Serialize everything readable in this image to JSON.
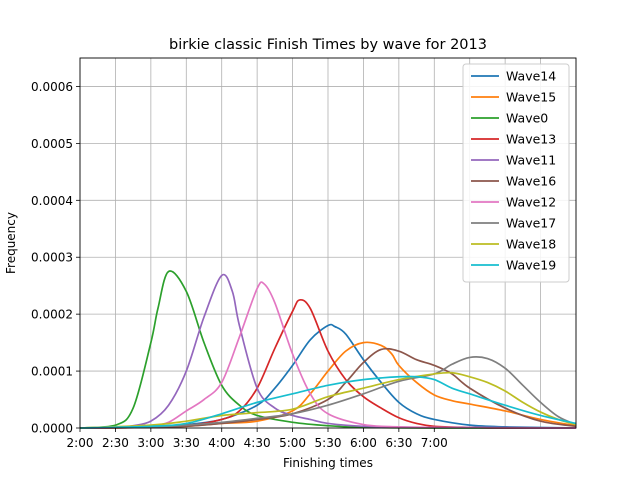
{
  "chart_data": {
    "type": "line",
    "title": "birkie classic Finish Times by wave for 2013",
    "xlabel": "Finishing times",
    "ylabel": "Frequency",
    "xlim": [
      2.0,
      9.0
    ],
    "ylim": [
      0,
      0.00065
    ],
    "x_ticks": [
      {
        "x": 2.0,
        "label": "2:00"
      },
      {
        "x": 2.5,
        "label": "2:30"
      },
      {
        "x": 3.0,
        "label": "3:00"
      },
      {
        "x": 3.5,
        "label": "3:30"
      },
      {
        "x": 4.0,
        "label": "4:00"
      },
      {
        "x": 4.5,
        "label": "4:30"
      },
      {
        "x": 5.0,
        "label": "5:00"
      },
      {
        "x": 5.5,
        "label": "5:30"
      },
      {
        "x": 6.0,
        "label": "6:00"
      },
      {
        "x": 6.5,
        "label": "6:30"
      },
      {
        "x": 7.0,
        "label": "7:00"
      }
    ],
    "x_grid_only": [
      7.5,
      8.0,
      8.5
    ],
    "y_ticks": [
      0,
      0.0001,
      0.0002,
      0.0003,
      0.0004,
      0.0005,
      0.0006
    ],
    "y_tick_labels": [
      "0.0000",
      "0.0001",
      "0.0002",
      "0.0003",
      "0.0004",
      "0.0005",
      "0.0006"
    ],
    "grid": true,
    "legend_position": "top-right",
    "series": [
      {
        "name": "Wave14",
        "color": "#1f77b4",
        "x": [
          2.0,
          3.0,
          3.5,
          4.0,
          4.5,
          4.75,
          5.0,
          5.25,
          5.5,
          5.6,
          5.75,
          6.0,
          6.25,
          6.5,
          6.75,
          7.0,
          7.5,
          8.0,
          9.0
        ],
        "y": [
          0,
          2e-06,
          6e-06,
          1.5e-05,
          4e-05,
          7e-05,
          0.00011,
          0.000155,
          0.00018,
          0.000178,
          0.000165,
          0.00012,
          8e-05,
          4.5e-05,
          2.5e-05,
          1.5e-05,
          5e-06,
          2e-06,
          0
        ]
      },
      {
        "name": "Wave15",
        "color": "#ff7f0e",
        "x": [
          2.0,
          3.0,
          3.5,
          4.0,
          4.5,
          5.0,
          5.25,
          5.5,
          5.75,
          6.0,
          6.25,
          6.4,
          6.5,
          6.75,
          7.0,
          7.25,
          7.5,
          8.0,
          8.5,
          9.0
        ],
        "y": [
          0,
          1e-06,
          3e-06,
          8e-06,
          1.2e-05,
          3e-05,
          6e-05,
          0.0001,
          0.000135,
          0.00015,
          0.000145,
          0.00013,
          0.00011,
          8e-05,
          5.8e-05,
          4.8e-05,
          4.2e-05,
          3e-05,
          1.5e-05,
          4e-06
        ]
      },
      {
        "name": "Wave0",
        "color": "#2ca02c",
        "x": [
          2.0,
          2.5,
          2.75,
          3.0,
          3.1,
          3.25,
          3.5,
          3.75,
          4.0,
          4.25,
          4.5,
          5.0,
          5.5,
          6.0,
          7.0,
          9.0
        ],
        "y": [
          0,
          5e-06,
          3.5e-05,
          0.00015,
          0.00021,
          0.000275,
          0.00024,
          0.00015,
          7.5e-05,
          4e-05,
          2.2e-05,
          1e-05,
          4e-06,
          1e-06,
          0,
          0
        ]
      },
      {
        "name": "Wave13",
        "color": "#d62728",
        "x": [
          2.0,
          3.0,
          3.5,
          4.0,
          4.25,
          4.5,
          4.75,
          5.0,
          5.1,
          5.25,
          5.5,
          5.75,
          6.0,
          6.25,
          6.5,
          6.75,
          7.0,
          7.5,
          8.0,
          9.0
        ],
        "y": [
          0,
          1e-06,
          4e-06,
          1.5e-05,
          3e-05,
          7e-05,
          0.00014,
          0.000205,
          0.000225,
          0.00021,
          0.000135,
          8.5e-05,
          5.5e-05,
          3.5e-05,
          1.8e-05,
          8e-06,
          3e-06,
          1e-06,
          0,
          0
        ]
      },
      {
        "name": "Wave11",
        "color": "#9467bd",
        "x": [
          2.0,
          2.5,
          2.75,
          3.0,
          3.25,
          3.5,
          3.75,
          4.0,
          4.15,
          4.25,
          4.5,
          4.75,
          5.0,
          5.25,
          5.5,
          6.0,
          7.0,
          9.0
        ],
        "y": [
          0,
          1e-06,
          4e-06,
          1.2e-05,
          4e-05,
          0.0001,
          0.000195,
          0.000268,
          0.00024,
          0.00018,
          7e-05,
          3.5e-05,
          2.2e-05,
          1.5e-05,
          8e-06,
          3e-06,
          1e-06,
          0
        ]
      },
      {
        "name": "Wave16",
        "color": "#8c564b",
        "x": [
          2.0,
          3.0,
          3.5,
          4.0,
          4.5,
          5.0,
          5.5,
          5.75,
          6.0,
          6.25,
          6.5,
          6.75,
          7.0,
          7.25,
          7.5,
          8.0,
          8.5,
          9.0
        ],
        "y": [
          0,
          1e-06,
          3e-06,
          8e-06,
          1.5e-05,
          2.5e-05,
          5e-05,
          8e-05,
          0.000115,
          0.000138,
          0.000135,
          0.00012,
          0.00011,
          9.5e-05,
          7e-05,
          3.5e-05,
          1.2e-05,
          3e-06
        ]
      },
      {
        "name": "Wave12",
        "color": "#e377c2",
        "x": [
          2.0,
          2.75,
          3.0,
          3.25,
          3.5,
          3.75,
          4.0,
          4.25,
          4.5,
          4.6,
          4.75,
          5.0,
          5.25,
          5.5,
          6.0,
          6.5,
          7.0,
          9.0
        ],
        "y": [
          0,
          1e-06,
          3e-06,
          1e-05,
          3e-05,
          5e-05,
          8e-05,
          0.00016,
          0.000245,
          0.000253,
          0.00022,
          0.00013,
          6e-05,
          2.5e-05,
          6e-06,
          2e-06,
          1e-06,
          0
        ]
      },
      {
        "name": "Wave17",
        "color": "#7f7f7f",
        "x": [
          2.0,
          3.0,
          3.5,
          4.0,
          4.5,
          5.0,
          5.5,
          6.0,
          6.5,
          7.0,
          7.25,
          7.5,
          7.75,
          8.0,
          8.25,
          8.5,
          8.75,
          9.0
        ],
        "y": [
          0,
          2e-06,
          5e-06,
          1e-05,
          1.7e-05,
          2.5e-05,
          4e-05,
          6e-05,
          8.2e-05,
          9.5e-05,
          0.000112,
          0.000124,
          0.000122,
          0.000105,
          7.5e-05,
          4.5e-05,
          2e-05,
          6e-06
        ]
      },
      {
        "name": "Wave18",
        "color": "#bcbd22",
        "x": [
          2.0,
          3.0,
          3.5,
          4.0,
          4.5,
          5.0,
          5.5,
          6.0,
          6.5,
          7.0,
          7.25,
          7.5,
          7.75,
          8.0,
          8.25,
          8.5,
          8.75,
          9.0
        ],
        "y": [
          0,
          5e-06,
          1.2e-05,
          2.2e-05,
          2.7e-05,
          3.3e-05,
          5.5e-05,
          7e-05,
          8.5e-05,
          9.5e-05,
          9.7e-05,
          9e-05,
          8e-05,
          6.5e-05,
          4.5e-05,
          2.8e-05,
          1.5e-05,
          6e-06
        ]
      },
      {
        "name": "Wave19",
        "color": "#17becf",
        "x": [
          2.0,
          3.0,
          3.5,
          4.0,
          4.5,
          5.0,
          5.5,
          6.0,
          6.5,
          6.75,
          7.0,
          7.25,
          7.5,
          8.0,
          8.5,
          9.0
        ],
        "y": [
          0,
          3e-06,
          8e-06,
          2.5e-05,
          4.5e-05,
          6e-05,
          7.5e-05,
          8.5e-05,
          9e-05,
          9e-05,
          8.5e-05,
          7e-05,
          6e-05,
          4e-05,
          2.2e-05,
          8e-06
        ]
      }
    ]
  }
}
